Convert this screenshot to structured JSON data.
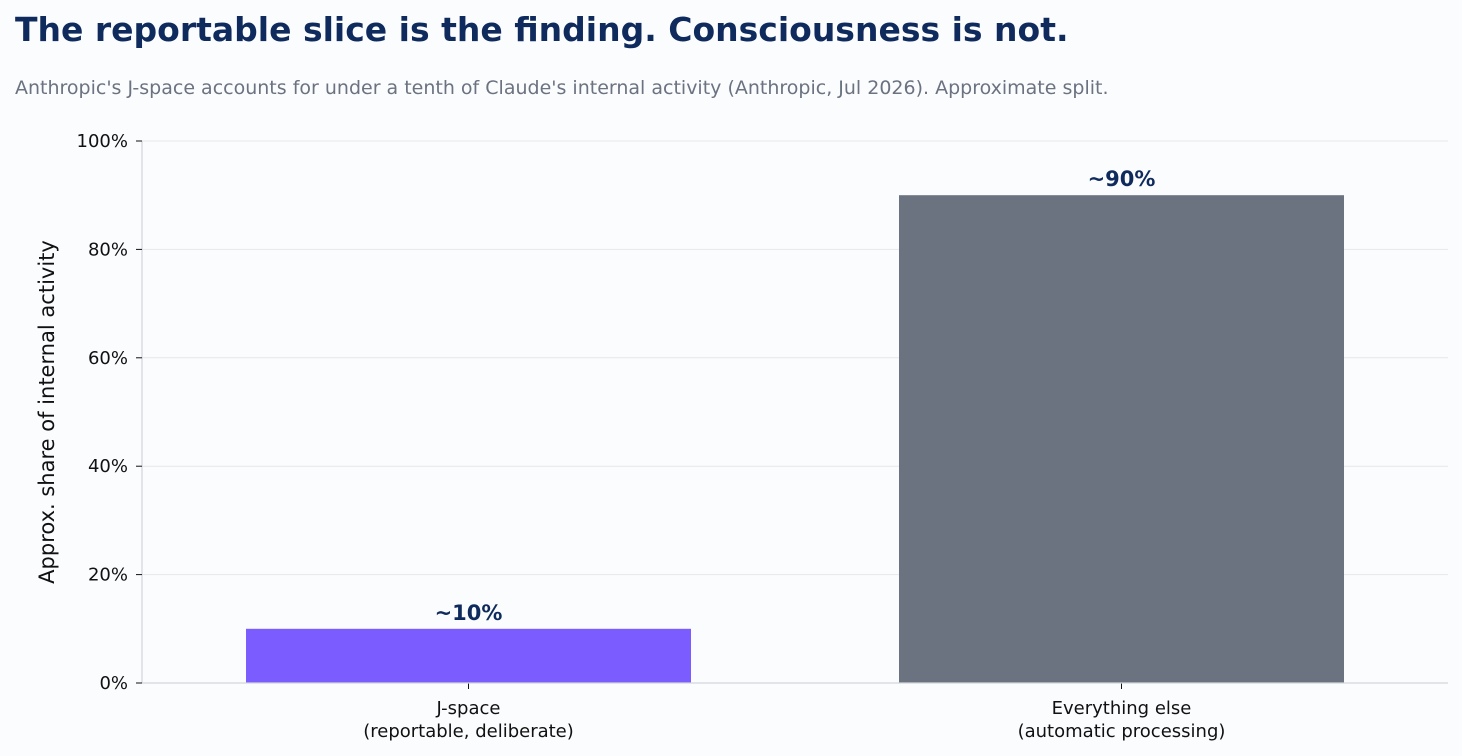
{
  "title": "The reportable slice is the finding. Consciousness is not.",
  "subtitle": "Anthropic's J-space accounts for under a tenth of Claude's internal activity (Anthropic, Jul 2026). Approximate split.",
  "chart_data": {
    "type": "bar",
    "categories": [
      [
        "J-space",
        "(reportable, deliberate)"
      ],
      [
        "Everything else",
        "(automatic processing)"
      ]
    ],
    "values": [
      10,
      90
    ],
    "value_labels": [
      "~10%",
      "~90%"
    ],
    "colors": [
      "#7b5cff",
      "#6b7280"
    ],
    "ylabel": "Approx. share of internal activity",
    "xlabel": "",
    "ylim": [
      0,
      100
    ],
    "yticks": [
      0,
      20,
      40,
      60,
      80,
      100
    ],
    "ytick_labels": [
      "0%",
      "20%",
      "40%",
      "60%",
      "80%",
      "100%"
    ],
    "grid": "horizontal",
    "label_color": "#0f2a5c"
  }
}
